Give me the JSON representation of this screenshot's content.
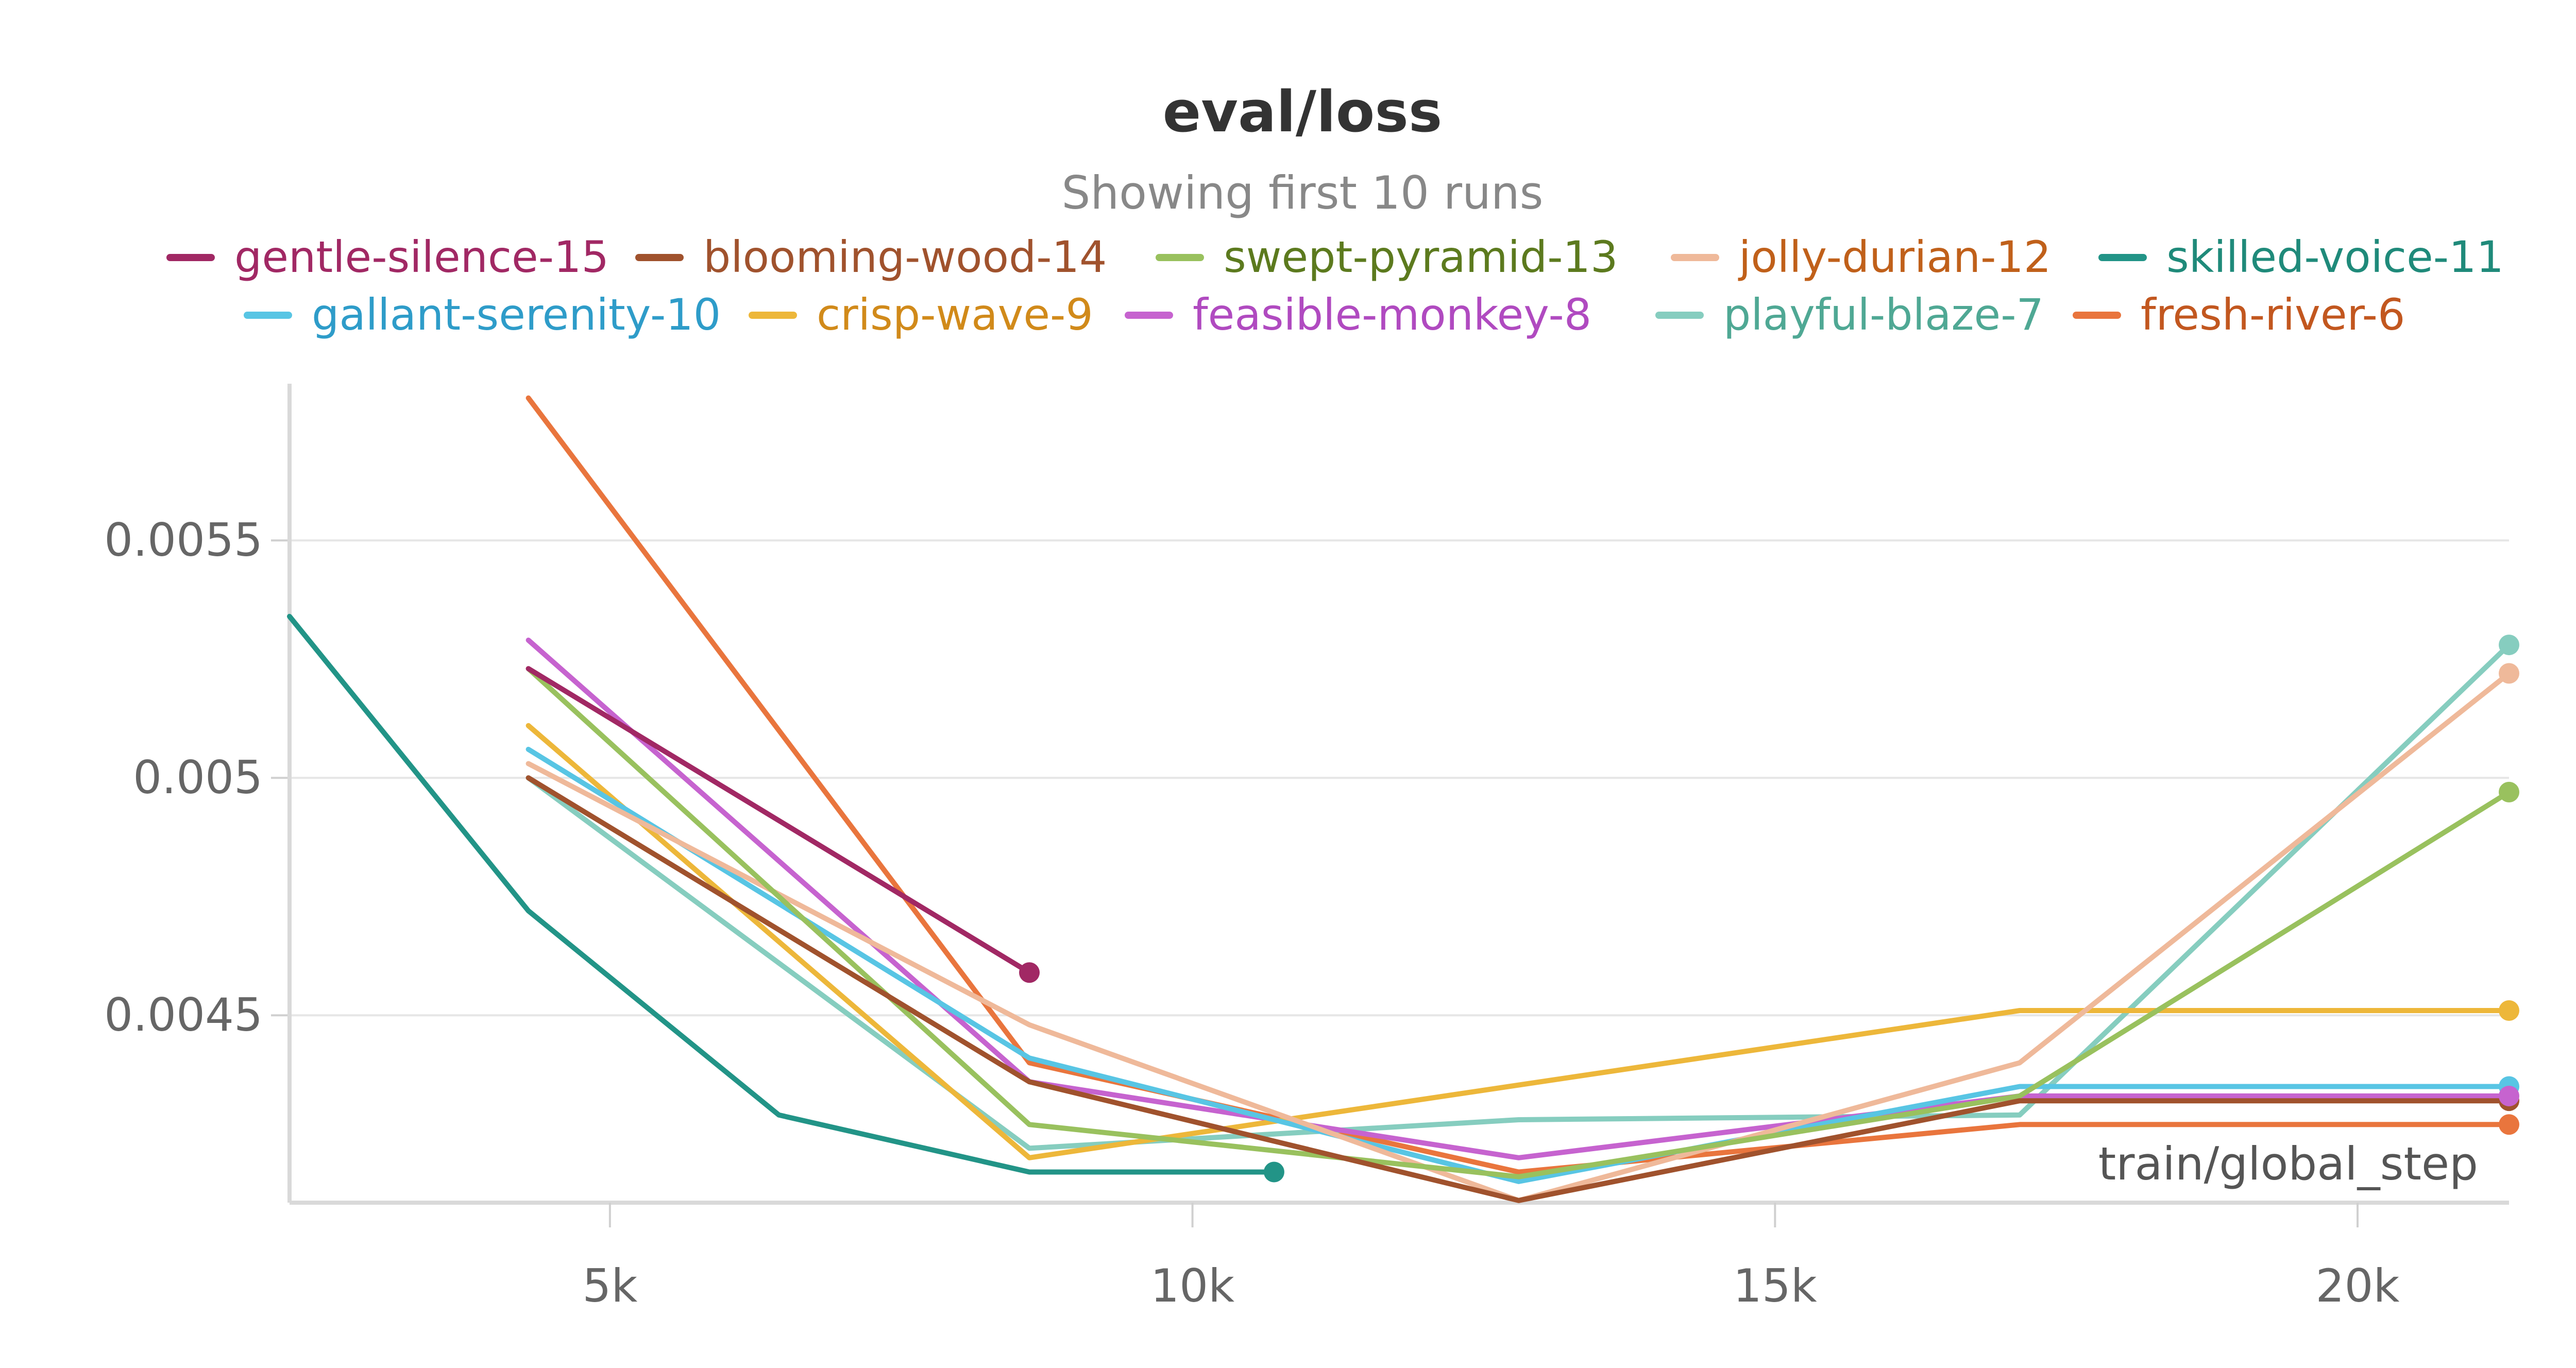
{
  "chart_data": {
    "type": "line",
    "title": "eval/loss",
    "subtitle": "Showing first 10 runs",
    "xlabel": "train/global_step",
    "ylabel": "",
    "xlim": [
      2250,
      21300
    ],
    "ylim": [
      0.0041,
      0.00583
    ],
    "x_ticks": [
      {
        "value": 5000,
        "label": "5k"
      },
      {
        "value": 10000,
        "label": "10k"
      },
      {
        "value": 15000,
        "label": "15k"
      },
      {
        "value": 20000,
        "label": "20k"
      }
    ],
    "y_ticks": [
      {
        "value": 0.0045,
        "label": "0.0045"
      },
      {
        "value": 0.005,
        "label": "0.005"
      },
      {
        "value": 0.0055,
        "label": "0.0055"
      }
    ],
    "grid": true,
    "legend_position": "top",
    "series": [
      {
        "name": "gentle-silence-15",
        "color": "#A12864",
        "text_color": "#A12864",
        "x": [
          4300,
          8600
        ],
        "y": [
          0.00523,
          0.00459
        ]
      },
      {
        "name": "blooming-wood-14",
        "color": "#A0522D",
        "text_color": "#A0522D",
        "x": [
          4300,
          8600,
          12800,
          17100,
          21300
        ],
        "y": [
          0.005,
          0.00436,
          0.00411,
          0.00432,
          0.00432
        ]
      },
      {
        "name": "swept-pyramid-13",
        "color": "#99C15E",
        "text_color": "#5C7A1E",
        "x": [
          4300,
          8600,
          12800,
          17100,
          21300
        ],
        "y": [
          0.00523,
          0.00427,
          0.00416,
          0.00433,
          0.00497
        ]
      },
      {
        "name": "jolly-durian-12",
        "color": "#EFB99A",
        "text_color": "#C0601A",
        "x": [
          4300,
          8600,
          12800,
          17100,
          21300
        ],
        "y": [
          0.00503,
          0.00448,
          0.00411,
          0.0044,
          0.00522
        ]
      },
      {
        "name": "skilled-voice-11",
        "color": "#229487",
        "text_color": "#1F8A7A",
        "x": [
          2250,
          4300,
          6450,
          8600,
          10700
        ],
        "y": [
          0.00534,
          0.00472,
          0.00429,
          0.00417,
          0.00417
        ]
      },
      {
        "name": "gallant-serenity-10",
        "color": "#58C5E4",
        "text_color": "#2E9CC9",
        "x": [
          4300,
          8600,
          12800,
          17100,
          21300
        ],
        "y": [
          0.00506,
          0.00441,
          0.00415,
          0.00435,
          0.00435
        ]
      },
      {
        "name": "crisp-wave-9",
        "color": "#EDB73A",
        "text_color": "#D18A1A",
        "x": [
          4300,
          8600,
          17100,
          21300
        ],
        "y": [
          0.00511,
          0.0042,
          0.00451,
          0.00451
        ]
      },
      {
        "name": "feasible-monkey-8",
        "color": "#C663CF",
        "text_color": "#B04AC0",
        "x": [
          4300,
          8600,
          12800,
          17100,
          21300
        ],
        "y": [
          0.00529,
          0.00436,
          0.0042,
          0.00433,
          0.00433
        ]
      },
      {
        "name": "playful-blaze-7",
        "color": "#86CDBF",
        "text_color": "#4FA894",
        "x": [
          4300,
          8600,
          12800,
          17100,
          21300
        ],
        "y": [
          0.005,
          0.00422,
          0.00428,
          0.00429,
          0.00528
        ]
      },
      {
        "name": "fresh-river-6",
        "color": "#E9753D",
        "text_color": "#C2571F",
        "x": [
          4300,
          8600,
          12800,
          17100,
          21300
        ],
        "y": [
          0.0058,
          0.0044,
          0.00417,
          0.00427,
          0.00427
        ]
      }
    ]
  }
}
